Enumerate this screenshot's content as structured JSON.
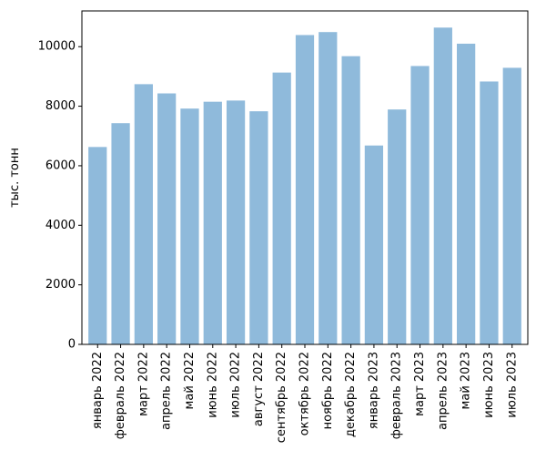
{
  "chart_data": {
    "type": "bar",
    "title": "",
    "xlabel": "",
    "ylabel": "тыс. тонн",
    "ylim": [
      0,
      11200
    ],
    "yticks": [
      0,
      2000,
      4000,
      6000,
      8000,
      10000
    ],
    "grid": false,
    "bar_color": "#8fbadb",
    "categories": [
      "январь 2022",
      "февраль 2022",
      "март 2022",
      "апрель 2022",
      "май 2022",
      "июнь 2022",
      "июль 2022",
      "август 2022",
      "сентябрь 2022",
      "октябрь 2022",
      "ноябрь 2022",
      "декабрь 2022",
      "январь 2023",
      "февраль 2023",
      "март 2023",
      "апрель 2023",
      "май 2023",
      "июнь 2023",
      "июль 2023"
    ],
    "values": [
      6630,
      7430,
      8740,
      8430,
      7920,
      8150,
      8190,
      7830,
      9130,
      10390,
      10490,
      9680,
      6680,
      7890,
      9350,
      10640,
      10100,
      8830,
      9290
    ]
  }
}
